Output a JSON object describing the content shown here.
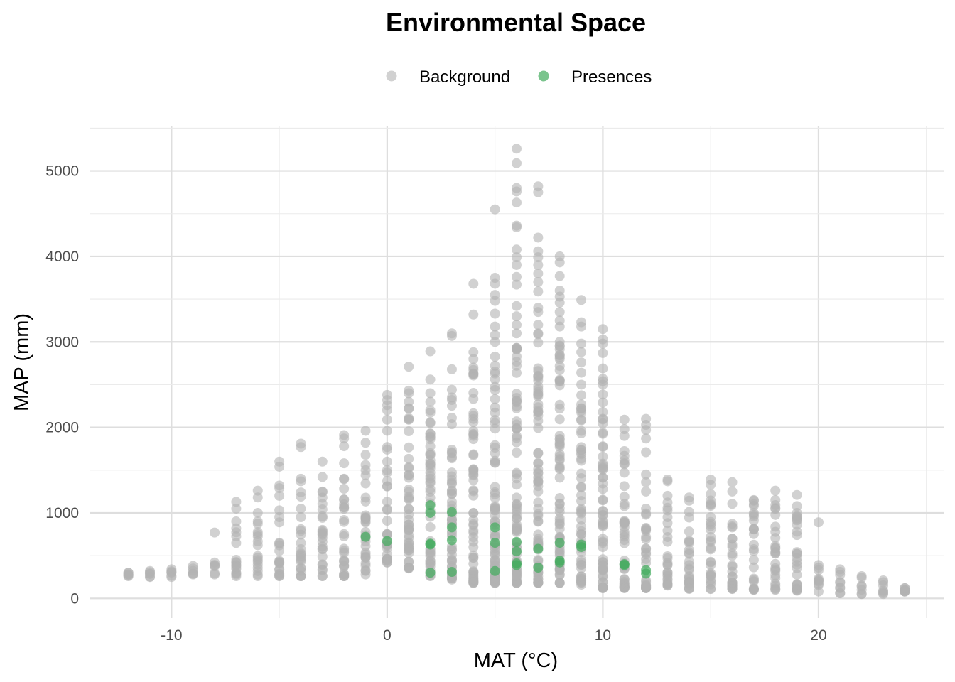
{
  "chart_data": {
    "type": "scatter",
    "title": "Environmental Space",
    "xlabel": "MAT (°C)",
    "ylabel": "MAP (mm)",
    "xlim": [
      -13.8,
      25.8
    ],
    "ylim": [
      -230,
      5520
    ],
    "xticks": [
      -10,
      0,
      10,
      20
    ],
    "yticks": [
      0,
      1000,
      2000,
      3000,
      4000,
      5000
    ],
    "grid": true,
    "legend_position": "top",
    "colors": {
      "background": "#b3b3b3",
      "presences": "#41ab5d"
    },
    "series": [
      {
        "name": "Background",
        "ranges": [
          {
            "x": -12,
            "min": 260,
            "max": 300
          },
          {
            "x": -11,
            "min": 250,
            "max": 320
          },
          {
            "x": -10,
            "min": 250,
            "max": 340
          },
          {
            "x": -9,
            "min": 280,
            "max": 380
          },
          {
            "x": -8,
            "min": 280,
            "max": 420
          },
          {
            "x": -7,
            "min": 260,
            "max": 900
          },
          {
            "x": -6,
            "min": 260,
            "max": 900
          },
          {
            "x": -5,
            "min": 260,
            "max": 950
          },
          {
            "x": -4,
            "min": 260,
            "max": 950
          },
          {
            "x": -3,
            "min": 260,
            "max": 1250
          },
          {
            "x": -2,
            "min": 260,
            "max": 1400
          },
          {
            "x": -1,
            "min": 280,
            "max": 1500
          },
          {
            "x": 0,
            "min": 420,
            "max": 1500
          },
          {
            "x": 1,
            "min": 350,
            "max": 2300
          },
          {
            "x": 2,
            "min": 260,
            "max": 2200
          },
          {
            "x": 3,
            "min": 220,
            "max": 2350
          },
          {
            "x": 4,
            "min": 180,
            "max": 2700
          },
          {
            "x": 5,
            "min": 180,
            "max": 3000
          },
          {
            "x": 6,
            "min": 180,
            "max": 3100
          },
          {
            "x": 7,
            "min": 180,
            "max": 3100
          },
          {
            "x": 8,
            "min": 180,
            "max": 3000
          },
          {
            "x": 9,
            "min": 160,
            "max": 2500
          },
          {
            "x": 10,
            "min": 120,
            "max": 2500
          },
          {
            "x": 11,
            "min": 120,
            "max": 1900
          },
          {
            "x": 12,
            "min": 120,
            "max": 1250
          },
          {
            "x": 13,
            "min": 150,
            "max": 1200
          },
          {
            "x": 14,
            "min": 110,
            "max": 1180
          },
          {
            "x": 15,
            "min": 110,
            "max": 1220
          },
          {
            "x": 16,
            "min": 110,
            "max": 1250
          },
          {
            "x": 17,
            "min": 100,
            "max": 1150
          },
          {
            "x": 18,
            "min": 100,
            "max": 1150
          },
          {
            "x": 19,
            "min": 90,
            "max": 1000
          },
          {
            "x": 20,
            "min": 80,
            "max": 330
          },
          {
            "x": 21,
            "min": 60,
            "max": 310
          },
          {
            "x": 22,
            "min": 50,
            "max": 240
          },
          {
            "x": 23,
            "min": 50,
            "max": 190
          },
          {
            "x": 24,
            "min": 80,
            "max": 120
          }
        ],
        "points": [
          {
            "x": -8,
            "y": 770
          },
          {
            "x": -7,
            "y": 1130
          },
          {
            "x": -7,
            "y": 1050
          },
          {
            "x": -6,
            "y": 1260
          },
          {
            "x": -6,
            "y": 1180
          },
          {
            "x": -6,
            "y": 1000
          },
          {
            "x": -5,
            "y": 1600
          },
          {
            "x": -5,
            "y": 1540
          },
          {
            "x": -5,
            "y": 1320
          },
          {
            "x": -5,
            "y": 1290
          },
          {
            "x": -5,
            "y": 1200
          },
          {
            "x": -5,
            "y": 1030
          },
          {
            "x": -4,
            "y": 1810
          },
          {
            "x": -4,
            "y": 1770
          },
          {
            "x": -4,
            "y": 1400
          },
          {
            "x": -4,
            "y": 1370
          },
          {
            "x": -4,
            "y": 1240
          },
          {
            "x": -4,
            "y": 1190
          },
          {
            "x": -4,
            "y": 1050
          },
          {
            "x": -4,
            "y": 810
          },
          {
            "x": -3,
            "y": 1600
          },
          {
            "x": -3,
            "y": 1420
          },
          {
            "x": -2,
            "y": 1910
          },
          {
            "x": -2,
            "y": 1870
          },
          {
            "x": -2,
            "y": 1780
          },
          {
            "x": -2,
            "y": 1580
          },
          {
            "x": -1,
            "y": 1960
          },
          {
            "x": -1,
            "y": 1820
          },
          {
            "x": -1,
            "y": 1680
          },
          {
            "x": -1,
            "y": 1560
          },
          {
            "x": 0,
            "y": 2380
          },
          {
            "x": 0,
            "y": 2320
          },
          {
            "x": 0,
            "y": 2260
          },
          {
            "x": 0,
            "y": 2200
          },
          {
            "x": 0,
            "y": 2090
          },
          {
            "x": 0,
            "y": 1960
          },
          {
            "x": 0,
            "y": 1770
          },
          {
            "x": 0,
            "y": 1740
          },
          {
            "x": 0,
            "y": 1600
          },
          {
            "x": 1,
            "y": 2710
          },
          {
            "x": 1,
            "y": 2430
          },
          {
            "x": 1,
            "y": 2400
          },
          {
            "x": 2,
            "y": 2890
          },
          {
            "x": 2,
            "y": 2560
          },
          {
            "x": 2,
            "y": 2400
          },
          {
            "x": 2,
            "y": 2300
          },
          {
            "x": 3,
            "y": 3100
          },
          {
            "x": 3,
            "y": 3070
          },
          {
            "x": 3,
            "y": 2680
          },
          {
            "x": 3,
            "y": 2440
          },
          {
            "x": 4,
            "y": 3680
          },
          {
            "x": 4,
            "y": 3320
          },
          {
            "x": 4,
            "y": 2880
          },
          {
            "x": 4,
            "y": 2800
          },
          {
            "x": 5,
            "y": 4550
          },
          {
            "x": 5,
            "y": 3750
          },
          {
            "x": 5,
            "y": 3680
          },
          {
            "x": 5,
            "y": 3550
          },
          {
            "x": 5,
            "y": 3480
          },
          {
            "x": 5,
            "y": 3330
          },
          {
            "x": 5,
            "y": 3180
          },
          {
            "x": 5,
            "y": 3080
          },
          {
            "x": 6,
            "y": 5260
          },
          {
            "x": 6,
            "y": 5090
          },
          {
            "x": 6,
            "y": 4800
          },
          {
            "x": 6,
            "y": 4760
          },
          {
            "x": 6,
            "y": 4630
          },
          {
            "x": 6,
            "y": 4360
          },
          {
            "x": 6,
            "y": 4340
          },
          {
            "x": 6,
            "y": 4080
          },
          {
            "x": 6,
            "y": 3990
          },
          {
            "x": 6,
            "y": 3900
          },
          {
            "x": 6,
            "y": 3760
          },
          {
            "x": 6,
            "y": 3670
          },
          {
            "x": 6,
            "y": 3420
          },
          {
            "x": 6,
            "y": 3300
          },
          {
            "x": 6,
            "y": 3200
          },
          {
            "x": 7,
            "y": 4820
          },
          {
            "x": 7,
            "y": 4750
          },
          {
            "x": 7,
            "y": 4220
          },
          {
            "x": 7,
            "y": 4060
          },
          {
            "x": 7,
            "y": 3990
          },
          {
            "x": 7,
            "y": 3900
          },
          {
            "x": 7,
            "y": 3800
          },
          {
            "x": 7,
            "y": 3700
          },
          {
            "x": 7,
            "y": 3590
          },
          {
            "x": 7,
            "y": 3400
          },
          {
            "x": 7,
            "y": 3350
          },
          {
            "x": 7,
            "y": 3200
          },
          {
            "x": 8,
            "y": 4000
          },
          {
            "x": 8,
            "y": 3930
          },
          {
            "x": 8,
            "y": 3770
          },
          {
            "x": 8,
            "y": 3600
          },
          {
            "x": 8,
            "y": 3530
          },
          {
            "x": 8,
            "y": 3460
          },
          {
            "x": 8,
            "y": 3350
          },
          {
            "x": 8,
            "y": 3250
          },
          {
            "x": 8,
            "y": 3180
          },
          {
            "x": 9,
            "y": 3490
          },
          {
            "x": 9,
            "y": 3230
          },
          {
            "x": 9,
            "y": 3180
          },
          {
            "x": 9,
            "y": 2980
          },
          {
            "x": 9,
            "y": 2880
          },
          {
            "x": 9,
            "y": 2760
          },
          {
            "x": 9,
            "y": 2640
          },
          {
            "x": 10,
            "y": 3150
          },
          {
            "x": 10,
            "y": 3030
          },
          {
            "x": 10,
            "y": 2980
          },
          {
            "x": 10,
            "y": 2870
          },
          {
            "x": 10,
            "y": 2690
          },
          {
            "x": 10,
            "y": 2570
          },
          {
            "x": 10,
            "y": 2540
          },
          {
            "x": 11,
            "y": 2090
          },
          {
            "x": 11,
            "y": 1980
          },
          {
            "x": 12,
            "y": 2100
          },
          {
            "x": 12,
            "y": 2030
          },
          {
            "x": 12,
            "y": 1970
          },
          {
            "x": 12,
            "y": 1870
          },
          {
            "x": 12,
            "y": 1710
          },
          {
            "x": 12,
            "y": 1450
          },
          {
            "x": 12,
            "y": 1360
          },
          {
            "x": 13,
            "y": 1390
          },
          {
            "x": 13,
            "y": 1370
          },
          {
            "x": 15,
            "y": 1390
          },
          {
            "x": 15,
            "y": 1330
          },
          {
            "x": 16,
            "y": 1360
          },
          {
            "x": 18,
            "y": 1260
          },
          {
            "x": 19,
            "y": 1210
          },
          {
            "x": 19,
            "y": 1080
          },
          {
            "x": 19,
            "y": 920
          },
          {
            "x": 19,
            "y": 860
          },
          {
            "x": 19,
            "y": 780
          },
          {
            "x": 20,
            "y": 890
          },
          {
            "x": 20,
            "y": 390
          },
          {
            "x": 20,
            "y": 360
          },
          {
            "x": 21,
            "y": 340
          },
          {
            "x": 22,
            "y": 260
          },
          {
            "x": 23,
            "y": 210
          },
          {
            "x": 24,
            "y": 120
          },
          {
            "x": 24,
            "y": 90
          }
        ]
      },
      {
        "name": "Presences",
        "points": [
          {
            "x": -1,
            "y": 720
          },
          {
            "x": 0,
            "y": 670
          },
          {
            "x": 2,
            "y": 1090
          },
          {
            "x": 2,
            "y": 1000
          },
          {
            "x": 2,
            "y": 640
          },
          {
            "x": 2,
            "y": 630
          },
          {
            "x": 2,
            "y": 300
          },
          {
            "x": 3,
            "y": 1010
          },
          {
            "x": 3,
            "y": 830
          },
          {
            "x": 3,
            "y": 680
          },
          {
            "x": 3,
            "y": 310
          },
          {
            "x": 5,
            "y": 830
          },
          {
            "x": 5,
            "y": 650
          },
          {
            "x": 5,
            "y": 320
          },
          {
            "x": 6,
            "y": 660
          },
          {
            "x": 6,
            "y": 550
          },
          {
            "x": 6,
            "y": 410
          },
          {
            "x": 6,
            "y": 390
          },
          {
            "x": 7,
            "y": 580
          },
          {
            "x": 7,
            "y": 360
          },
          {
            "x": 8,
            "y": 650
          },
          {
            "x": 8,
            "y": 440
          },
          {
            "x": 8,
            "y": 420
          },
          {
            "x": 9,
            "y": 630
          },
          {
            "x": 9,
            "y": 600
          },
          {
            "x": 11,
            "y": 400
          },
          {
            "x": 11,
            "y": 390
          },
          {
            "x": 12,
            "y": 330
          },
          {
            "x": 12,
            "y": 290
          }
        ]
      }
    ]
  }
}
